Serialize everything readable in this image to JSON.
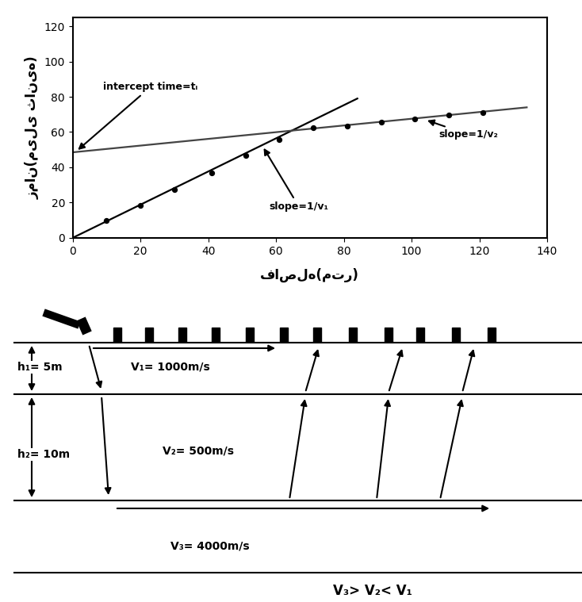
{
  "chart_data": {
    "type": "line",
    "xlabel": "فاصله(متر)",
    "ylabel": "زمان(میلی ثانیه)",
    "xlim": [
      0,
      140
    ],
    "xticks": [
      0,
      20,
      40,
      60,
      80,
      100,
      120,
      140
    ],
    "ylim": [
      0,
      125
    ],
    "yticks": [
      0,
      20,
      40,
      60,
      80,
      100,
      120
    ],
    "grid": false,
    "series": [
      {
        "type": "scatter",
        "color": "#000000",
        "marker": "circle",
        "x": [
          10,
          20,
          30,
          41,
          51,
          61,
          71,
          81,
          91,
          101,
          111,
          121
        ],
        "values": [
          10,
          18.5,
          27.5,
          37,
          46.5,
          55.5,
          62.5,
          63.5,
          65.5,
          67.5,
          69.5,
          71
        ]
      },
      {
        "type": "line",
        "color": "#000000",
        "line_style": "solid",
        "x": [
          0,
          84
        ],
        "values": [
          0,
          79
        ]
      },
      {
        "type": "line",
        "color": "#444444",
        "line_style": "solid",
        "x": [
          0,
          134
        ],
        "values": [
          48.5,
          74
        ]
      }
    ],
    "annotations": [
      {
        "text": "intercept time=tᵢ",
        "x": 1,
        "y": 49,
        "text_x": 9,
        "text_y": 84
      },
      {
        "text": "slope=1/v₁",
        "x": 56,
        "y": 52,
        "text_x": 58,
        "text_y": 16
      },
      {
        "text": "slope=1/v₂",
        "x": 104,
        "y": 67,
        "text_x": 108,
        "text_y": 57
      }
    ]
  },
  "diagram": {
    "layers": [
      {
        "thickness_label": "h₁= 5m",
        "velocity_label": "V₁= 1000m/s"
      },
      {
        "thickness_label": "h₂= 10m",
        "velocity_label": "V₂= 500m/s"
      },
      {
        "velocity_label": "V₃= 4000m/s"
      }
    ],
    "caption": "V₃> V₂< V₁"
  }
}
